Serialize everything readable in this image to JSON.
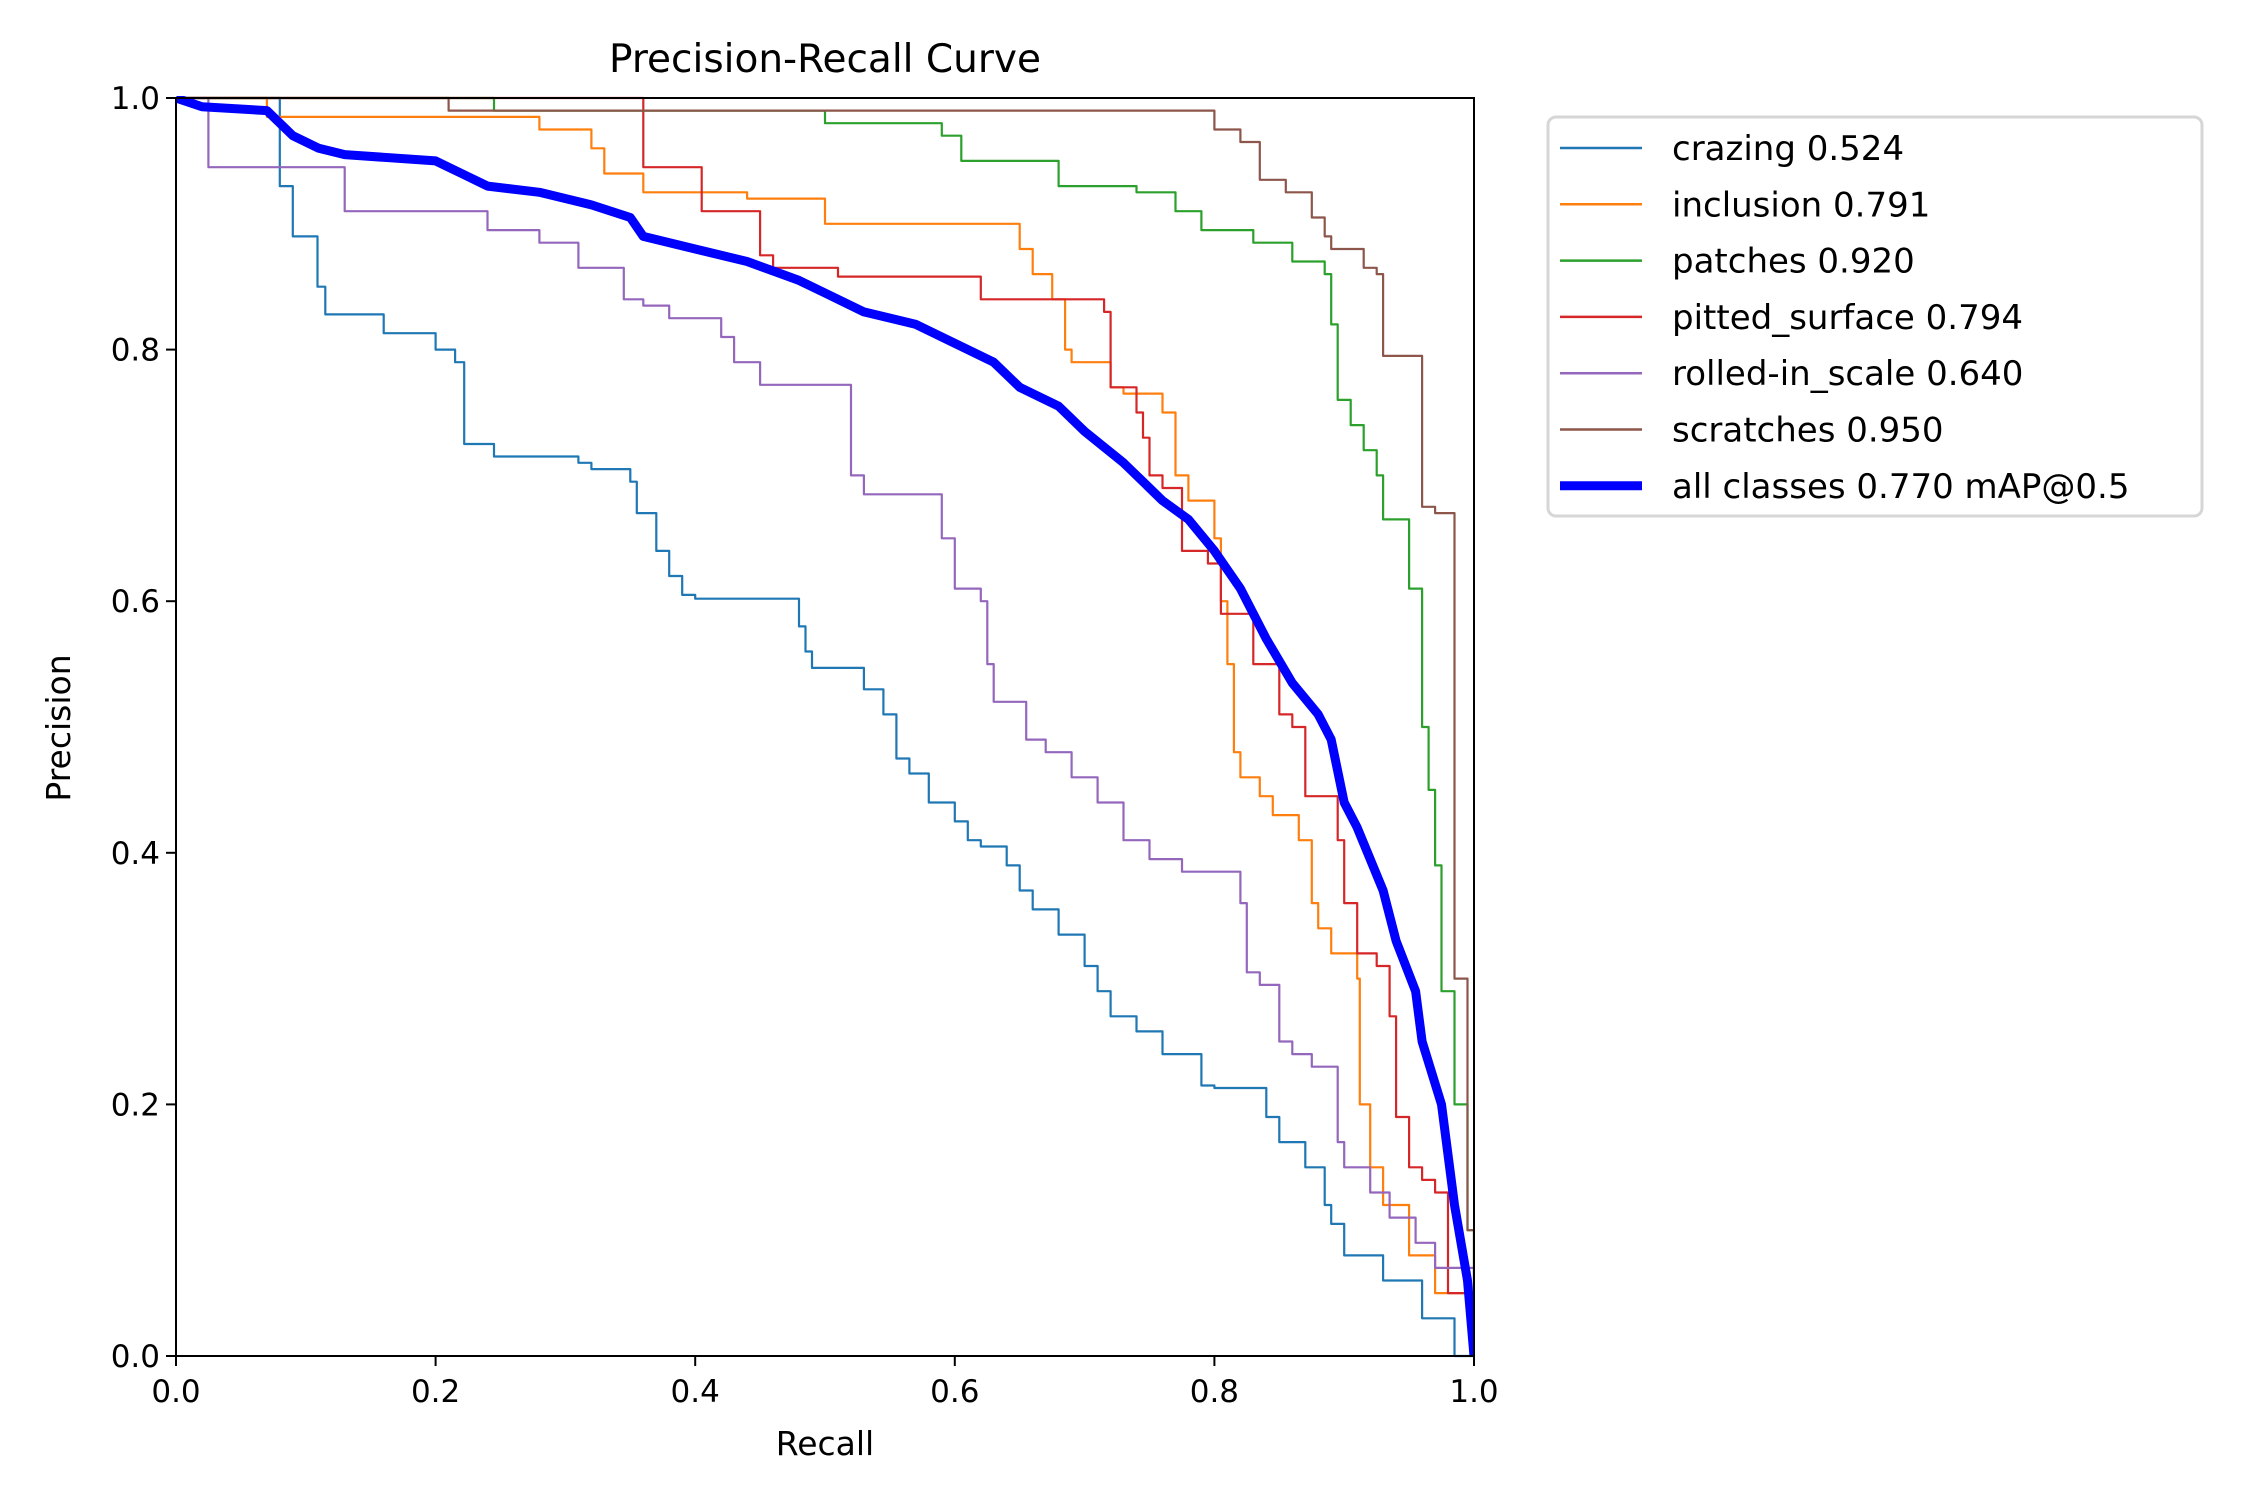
{
  "chart_data": {
    "type": "line",
    "title": "Precision-Recall Curve",
    "xlabel": "Recall",
    "ylabel": "Precision",
    "xlim": [
      0,
      1
    ],
    "ylim": [
      0,
      1
    ],
    "xticks": [
      "0.0",
      "0.2",
      "0.4",
      "0.6",
      "0.8",
      "1.0"
    ],
    "yticks": [
      "0.0",
      "0.2",
      "0.4",
      "0.6",
      "0.8",
      "1.0"
    ],
    "grid": false,
    "legend_position": "outside-top-right",
    "series": [
      {
        "name": "crazing 0.524",
        "color": "#1f77b4",
        "step": true,
        "points": [
          [
            0,
            1
          ],
          [
            0.08,
            0.93
          ],
          [
            0.09,
            0.89
          ],
          [
            0.109,
            0.85
          ],
          [
            0.115,
            0.828
          ],
          [
            0.16,
            0.813
          ],
          [
            0.2,
            0.8
          ],
          [
            0.215,
            0.79
          ],
          [
            0.222,
            0.725
          ],
          [
            0.245,
            0.715
          ],
          [
            0.31,
            0.71
          ],
          [
            0.32,
            0.705
          ],
          [
            0.35,
            0.695
          ],
          [
            0.355,
            0.67
          ],
          [
            0.37,
            0.64
          ],
          [
            0.38,
            0.62
          ],
          [
            0.39,
            0.605
          ],
          [
            0.4,
            0.602
          ],
          [
            0.48,
            0.58
          ],
          [
            0.485,
            0.56
          ],
          [
            0.49,
            0.547
          ],
          [
            0.53,
            0.53
          ],
          [
            0.545,
            0.51
          ],
          [
            0.555,
            0.475
          ],
          [
            0.565,
            0.463
          ],
          [
            0.58,
            0.44
          ],
          [
            0.6,
            0.425
          ],
          [
            0.61,
            0.41
          ],
          [
            0.62,
            0.405
          ],
          [
            0.64,
            0.39
          ],
          [
            0.65,
            0.37
          ],
          [
            0.66,
            0.355
          ],
          [
            0.68,
            0.335
          ],
          [
            0.7,
            0.31
          ],
          [
            0.71,
            0.29
          ],
          [
            0.72,
            0.27
          ],
          [
            0.74,
            0.258
          ],
          [
            0.76,
            0.24
          ],
          [
            0.79,
            0.215
          ],
          [
            0.8,
            0.213
          ],
          [
            0.84,
            0.19
          ],
          [
            0.85,
            0.17
          ],
          [
            0.87,
            0.15
          ],
          [
            0.885,
            0.12
          ],
          [
            0.89,
            0.105
          ],
          [
            0.9,
            0.08
          ],
          [
            0.93,
            0.06
          ],
          [
            0.96,
            0.03
          ],
          [
            0.985,
            0.0
          ],
          [
            1.0,
            0.0
          ]
        ]
      },
      {
        "name": "inclusion 0.791",
        "color": "#ff7f0e",
        "step": true,
        "points": [
          [
            0,
            1
          ],
          [
            0.07,
            0.985
          ],
          [
            0.28,
            0.975
          ],
          [
            0.32,
            0.96
          ],
          [
            0.33,
            0.94
          ],
          [
            0.36,
            0.925
          ],
          [
            0.44,
            0.92
          ],
          [
            0.5,
            0.9
          ],
          [
            0.65,
            0.88
          ],
          [
            0.66,
            0.86
          ],
          [
            0.675,
            0.84
          ],
          [
            0.685,
            0.8
          ],
          [
            0.69,
            0.79
          ],
          [
            0.72,
            0.77
          ],
          [
            0.73,
            0.765
          ],
          [
            0.76,
            0.75
          ],
          [
            0.77,
            0.7
          ],
          [
            0.78,
            0.68
          ],
          [
            0.8,
            0.65
          ],
          [
            0.805,
            0.6
          ],
          [
            0.81,
            0.55
          ],
          [
            0.815,
            0.48
          ],
          [
            0.82,
            0.46
          ],
          [
            0.835,
            0.445
          ],
          [
            0.845,
            0.43
          ],
          [
            0.865,
            0.41
          ],
          [
            0.875,
            0.36
          ],
          [
            0.88,
            0.34
          ],
          [
            0.89,
            0.32
          ],
          [
            0.91,
            0.3
          ],
          [
            0.912,
            0.2
          ],
          [
            0.92,
            0.15
          ],
          [
            0.93,
            0.12
          ],
          [
            0.95,
            0.08
          ],
          [
            0.97,
            0.05
          ],
          [
            1.0,
            0.0
          ]
        ]
      },
      {
        "name": "patches 0.920",
        "color": "#2ca02c",
        "step": true,
        "points": [
          [
            0,
            1
          ],
          [
            0.245,
            0.99
          ],
          [
            0.5,
            0.98
          ],
          [
            0.59,
            0.97
          ],
          [
            0.605,
            0.95
          ],
          [
            0.68,
            0.93
          ],
          [
            0.74,
            0.925
          ],
          [
            0.77,
            0.91
          ],
          [
            0.79,
            0.895
          ],
          [
            0.83,
            0.885
          ],
          [
            0.86,
            0.87
          ],
          [
            0.885,
            0.86
          ],
          [
            0.89,
            0.82
          ],
          [
            0.895,
            0.76
          ],
          [
            0.905,
            0.74
          ],
          [
            0.915,
            0.72
          ],
          [
            0.925,
            0.7
          ],
          [
            0.93,
            0.665
          ],
          [
            0.95,
            0.61
          ],
          [
            0.96,
            0.5
          ],
          [
            0.965,
            0.45
          ],
          [
            0.97,
            0.39
          ],
          [
            0.975,
            0.29
          ],
          [
            0.985,
            0.2
          ],
          [
            0.995,
            0.1
          ],
          [
            1.0,
            0.0
          ]
        ]
      },
      {
        "name": "pitted_surface 0.794",
        "color": "#d62728",
        "step": true,
        "points": [
          [
            0,
            1
          ],
          [
            0.36,
            0.945
          ],
          [
            0.405,
            0.91
          ],
          [
            0.45,
            0.875
          ],
          [
            0.46,
            0.865
          ],
          [
            0.51,
            0.858
          ],
          [
            0.62,
            0.84
          ],
          [
            0.715,
            0.83
          ],
          [
            0.72,
            0.77
          ],
          [
            0.74,
            0.75
          ],
          [
            0.745,
            0.73
          ],
          [
            0.75,
            0.7
          ],
          [
            0.76,
            0.69
          ],
          [
            0.775,
            0.64
          ],
          [
            0.795,
            0.63
          ],
          [
            0.805,
            0.59
          ],
          [
            0.83,
            0.55
          ],
          [
            0.85,
            0.51
          ],
          [
            0.86,
            0.5
          ],
          [
            0.87,
            0.445
          ],
          [
            0.895,
            0.41
          ],
          [
            0.9,
            0.36
          ],
          [
            0.91,
            0.32
          ],
          [
            0.925,
            0.31
          ],
          [
            0.935,
            0.27
          ],
          [
            0.94,
            0.19
          ],
          [
            0.95,
            0.15
          ],
          [
            0.96,
            0.14
          ],
          [
            0.97,
            0.13
          ],
          [
            0.98,
            0.05
          ],
          [
            1.0,
            0.0
          ]
        ]
      },
      {
        "name": "rolled-in_scale 0.640",
        "color": "#9467bd",
        "step": true,
        "points": [
          [
            0,
            1
          ],
          [
            0.025,
            0.945
          ],
          [
            0.13,
            0.91
          ],
          [
            0.24,
            0.895
          ],
          [
            0.28,
            0.885
          ],
          [
            0.31,
            0.865
          ],
          [
            0.345,
            0.84
          ],
          [
            0.36,
            0.835
          ],
          [
            0.38,
            0.825
          ],
          [
            0.42,
            0.81
          ],
          [
            0.43,
            0.79
          ],
          [
            0.45,
            0.772
          ],
          [
            0.52,
            0.7
          ],
          [
            0.53,
            0.685
          ],
          [
            0.59,
            0.65
          ],
          [
            0.6,
            0.61
          ],
          [
            0.62,
            0.6
          ],
          [
            0.625,
            0.55
          ],
          [
            0.63,
            0.52
          ],
          [
            0.655,
            0.49
          ],
          [
            0.67,
            0.48
          ],
          [
            0.69,
            0.46
          ],
          [
            0.71,
            0.44
          ],
          [
            0.73,
            0.41
          ],
          [
            0.75,
            0.395
          ],
          [
            0.775,
            0.385
          ],
          [
            0.82,
            0.36
          ],
          [
            0.825,
            0.305
          ],
          [
            0.835,
            0.295
          ],
          [
            0.85,
            0.25
          ],
          [
            0.86,
            0.24
          ],
          [
            0.875,
            0.23
          ],
          [
            0.895,
            0.17
          ],
          [
            0.9,
            0.15
          ],
          [
            0.92,
            0.13
          ],
          [
            0.935,
            0.11
          ],
          [
            0.955,
            0.09
          ],
          [
            0.97,
            0.07
          ],
          [
            1.0,
            0.0
          ]
        ]
      },
      {
        "name": "scratches 0.950",
        "color": "#8c564b",
        "step": true,
        "points": [
          [
            0,
            1
          ],
          [
            0.21,
            0.99
          ],
          [
            0.8,
            0.975
          ],
          [
            0.82,
            0.965
          ],
          [
            0.835,
            0.935
          ],
          [
            0.855,
            0.925
          ],
          [
            0.875,
            0.905
          ],
          [
            0.885,
            0.89
          ],
          [
            0.89,
            0.88
          ],
          [
            0.915,
            0.865
          ],
          [
            0.925,
            0.86
          ],
          [
            0.93,
            0.795
          ],
          [
            0.96,
            0.675
          ],
          [
            0.97,
            0.67
          ],
          [
            0.985,
            0.3
          ],
          [
            0.995,
            0.1
          ],
          [
            1.0,
            0.0
          ]
        ]
      },
      {
        "name": "all classes 0.770 mAP@0.5",
        "color": "#0000ff",
        "step": false,
        "thick": true,
        "points": [
          [
            0,
            1
          ],
          [
            0.02,
            0.993
          ],
          [
            0.07,
            0.99
          ],
          [
            0.09,
            0.97
          ],
          [
            0.11,
            0.96
          ],
          [
            0.13,
            0.955
          ],
          [
            0.2,
            0.95
          ],
          [
            0.22,
            0.94
          ],
          [
            0.24,
            0.93
          ],
          [
            0.28,
            0.925
          ],
          [
            0.32,
            0.915
          ],
          [
            0.35,
            0.905
          ],
          [
            0.36,
            0.89
          ],
          [
            0.4,
            0.88
          ],
          [
            0.44,
            0.87
          ],
          [
            0.48,
            0.855
          ],
          [
            0.5,
            0.845
          ],
          [
            0.53,
            0.83
          ],
          [
            0.57,
            0.82
          ],
          [
            0.6,
            0.805
          ],
          [
            0.63,
            0.79
          ],
          [
            0.65,
            0.77
          ],
          [
            0.68,
            0.755
          ],
          [
            0.7,
            0.735
          ],
          [
            0.73,
            0.71
          ],
          [
            0.76,
            0.68
          ],
          [
            0.78,
            0.665
          ],
          [
            0.8,
            0.64
          ],
          [
            0.82,
            0.61
          ],
          [
            0.84,
            0.57
          ],
          [
            0.86,
            0.535
          ],
          [
            0.88,
            0.51
          ],
          [
            0.89,
            0.49
          ],
          [
            0.9,
            0.44
          ],
          [
            0.91,
            0.42
          ],
          [
            0.93,
            0.37
          ],
          [
            0.94,
            0.33
          ],
          [
            0.955,
            0.29
          ],
          [
            0.96,
            0.25
          ],
          [
            0.975,
            0.2
          ],
          [
            0.985,
            0.12
          ],
          [
            0.995,
            0.06
          ],
          [
            1.0,
            0.0
          ]
        ]
      }
    ]
  }
}
